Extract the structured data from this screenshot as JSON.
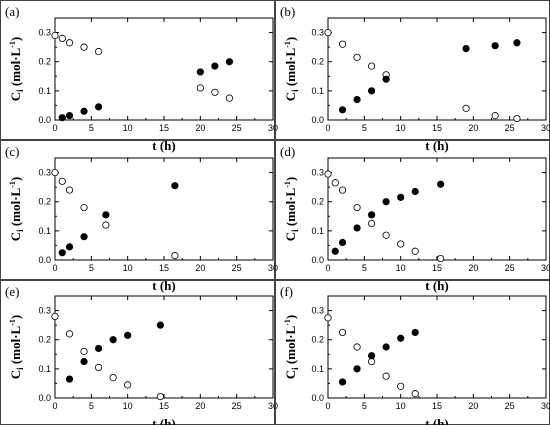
{
  "chart_data": [
    {
      "type": "scatter",
      "panel_label": "(a)",
      "xlabel": "t (h)",
      "ylabel": "C_i (mol·L⁻¹)",
      "xlim": [
        0,
        30
      ],
      "ylim": [
        0,
        0.35
      ],
      "xticks": [
        "0",
        "5",
        "10",
        "15",
        "20",
        "25",
        "30"
      ],
      "yticks": [
        "0.0",
        "0.1",
        "0.2",
        "0.3"
      ],
      "grid": false,
      "series": [
        {
          "marker": "open",
          "x": [
            0,
            1,
            2,
            4,
            6,
            20,
            22,
            24
          ],
          "y": [
            0.29,
            0.28,
            0.265,
            0.25,
            0.235,
            0.11,
            0.095,
            0.075
          ]
        },
        {
          "marker": "filled",
          "x": [
            1,
            2,
            4,
            6,
            20,
            22,
            24
          ],
          "y": [
            0.008,
            0.015,
            0.03,
            0.045,
            0.165,
            0.185,
            0.2
          ]
        }
      ]
    },
    {
      "type": "scatter",
      "panel_label": "(b)",
      "xlabel": "t (h)",
      "ylabel": "C_i (mol·L⁻¹)",
      "xlim": [
        0,
        30
      ],
      "ylim": [
        0,
        0.35
      ],
      "xticks": [
        "0",
        "5",
        "10",
        "15",
        "20",
        "25",
        "30"
      ],
      "yticks": [
        "0.0",
        "0.1",
        "0.2",
        "0.3"
      ],
      "grid": false,
      "series": [
        {
          "marker": "open",
          "x": [
            0,
            2,
            4,
            6,
            8,
            19,
            23,
            26
          ],
          "y": [
            0.3,
            0.26,
            0.215,
            0.185,
            0.155,
            0.04,
            0.015,
            0.005
          ]
        },
        {
          "marker": "filled",
          "x": [
            2,
            4,
            6,
            8,
            19,
            23,
            26
          ],
          "y": [
            0.035,
            0.07,
            0.1,
            0.14,
            0.245,
            0.255,
            0.265
          ]
        }
      ]
    },
    {
      "type": "scatter",
      "panel_label": "(c)",
      "xlabel": "t (h)",
      "ylabel": "C_i (mol·L⁻¹)",
      "xlim": [
        0,
        30
      ],
      "ylim": [
        0,
        0.35
      ],
      "xticks": [
        "0",
        "5",
        "10",
        "15",
        "20",
        "25",
        "30"
      ],
      "yticks": [
        "0.0",
        "0.1",
        "0.2",
        "0.3"
      ],
      "grid": false,
      "series": [
        {
          "marker": "open",
          "x": [
            0,
            1,
            2,
            4,
            7,
            16.5
          ],
          "y": [
            0.3,
            0.27,
            0.24,
            0.18,
            0.12,
            0.015
          ]
        },
        {
          "marker": "filled",
          "x": [
            1,
            2,
            4,
            7,
            16.5
          ],
          "y": [
            0.025,
            0.045,
            0.08,
            0.155,
            0.255
          ]
        }
      ]
    },
    {
      "type": "scatter",
      "panel_label": "(d)",
      "xlabel": "t (h)",
      "ylabel": "C_i (mol·L⁻¹)",
      "xlim": [
        0,
        30
      ],
      "ylim": [
        0,
        0.35
      ],
      "xticks": [
        "0",
        "5",
        "10",
        "15",
        "20",
        "25",
        "30"
      ],
      "yticks": [
        "0.0",
        "0.1",
        "0.2",
        "0.3"
      ],
      "grid": false,
      "series": [
        {
          "marker": "open",
          "x": [
            0,
            1,
            2,
            4,
            6,
            8,
            10,
            12,
            15.5
          ],
          "y": [
            0.295,
            0.265,
            0.24,
            0.18,
            0.125,
            0.085,
            0.055,
            0.03,
            0.005
          ]
        },
        {
          "marker": "filled",
          "x": [
            1,
            2,
            4,
            6,
            8,
            10,
            12,
            15.5
          ],
          "y": [
            0.03,
            0.06,
            0.11,
            0.155,
            0.2,
            0.215,
            0.235,
            0.26
          ]
        }
      ]
    },
    {
      "type": "scatter",
      "panel_label": "(e)",
      "xlabel": "t (h)",
      "ylabel": "C_i (mol·L⁻¹)",
      "xlim": [
        0,
        30
      ],
      "ylim": [
        0,
        0.35
      ],
      "xticks": [
        "0",
        "5",
        "10",
        "15",
        "20",
        "25",
        "30"
      ],
      "yticks": [
        "0.0",
        "0.1",
        "0.2",
        "0.3"
      ],
      "grid": false,
      "series": [
        {
          "marker": "open",
          "x": [
            0,
            2,
            4,
            6,
            8,
            10,
            14.5
          ],
          "y": [
            0.28,
            0.22,
            0.16,
            0.105,
            0.07,
            0.045,
            0.005
          ]
        },
        {
          "marker": "filled",
          "x": [
            2,
            4,
            6,
            8,
            10,
            14.5
          ],
          "y": [
            0.065,
            0.125,
            0.17,
            0.2,
            0.215,
            0.25
          ]
        }
      ]
    },
    {
      "type": "scatter",
      "panel_label": "(f)",
      "xlabel": "t (h)",
      "ylabel": "C_i (mol·L⁻¹)",
      "xlim": [
        0,
        30
      ],
      "ylim": [
        0,
        0.35
      ],
      "xticks": [
        "0",
        "5",
        "10",
        "15",
        "20",
        "25",
        "30"
      ],
      "yticks": [
        "0.0",
        "0.1",
        "0.2",
        "0.3"
      ],
      "grid": false,
      "series": [
        {
          "marker": "open",
          "x": [
            0,
            2,
            4,
            6,
            8,
            10,
            12
          ],
          "y": [
            0.275,
            0.225,
            0.175,
            0.125,
            0.075,
            0.04,
            0.015
          ]
        },
        {
          "marker": "filled",
          "x": [
            2,
            4,
            6,
            8,
            10,
            12
          ],
          "y": [
            0.055,
            0.1,
            0.145,
            0.175,
            0.205,
            0.225
          ]
        }
      ]
    }
  ]
}
